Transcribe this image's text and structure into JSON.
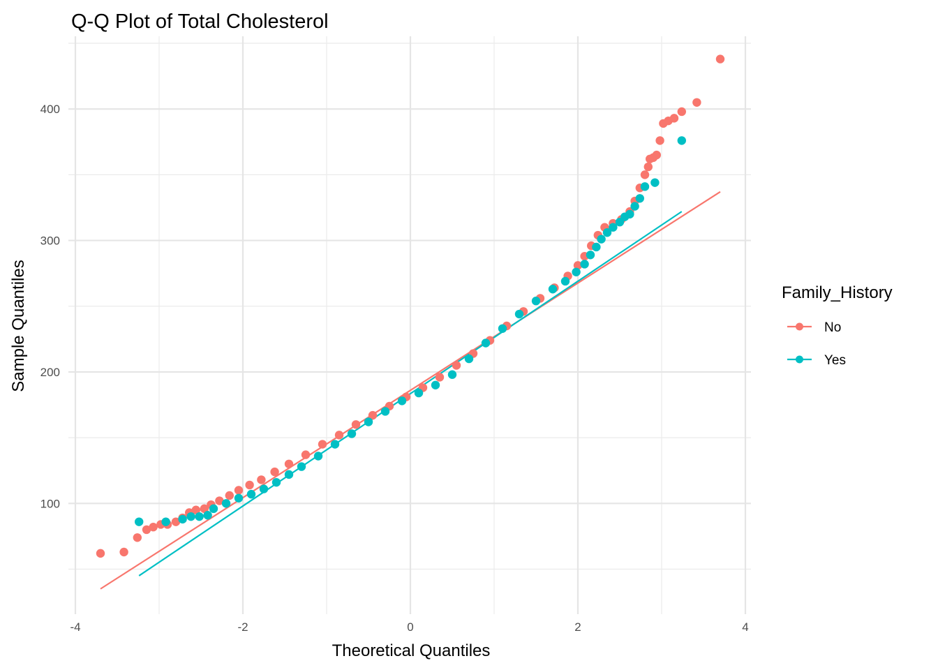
{
  "chart_data": {
    "type": "scatter",
    "title": "Q-Q Plot of Total Cholesterol",
    "xlabel": "Theoretical Quantiles",
    "ylabel": "Sample Quantiles",
    "xlim": [
      -4.0,
      4.0
    ],
    "ylim": [
      20,
      450
    ],
    "x_ticks": [
      -4,
      -2,
      0,
      2,
      4
    ],
    "x_tick_labels": [
      "-4",
      "-2",
      "0",
      "2",
      "4"
    ],
    "y_ticks": [
      100,
      200,
      300,
      400
    ],
    "y_tick_labels": [
      "100",
      "200",
      "300",
      "400"
    ],
    "grid": true,
    "legend": {
      "title": "Family_History",
      "position": "right",
      "entries": [
        "No",
        "Yes"
      ]
    },
    "series": [
      {
        "name": "No",
        "color": "#f8766d",
        "line": [
          [
            -3.7,
            35
          ],
          [
            3.7,
            337
          ]
        ],
        "points": [
          [
            -3.7,
            62
          ],
          [
            -3.42,
            63
          ],
          [
            -3.26,
            74
          ],
          [
            -3.15,
            80
          ],
          [
            -3.07,
            82
          ],
          [
            -2.98,
            84
          ],
          [
            -2.9,
            84
          ],
          [
            -2.8,
            86
          ],
          [
            -2.72,
            89
          ],
          [
            -2.64,
            93
          ],
          [
            -2.56,
            95
          ],
          [
            -2.46,
            96
          ],
          [
            -2.38,
            99
          ],
          [
            -2.28,
            102
          ],
          [
            -2.16,
            106
          ],
          [
            -2.05,
            110
          ],
          [
            -1.92,
            114
          ],
          [
            -1.78,
            118
          ],
          [
            -1.62,
            124
          ],
          [
            -1.45,
            130
          ],
          [
            -1.25,
            137
          ],
          [
            -1.05,
            145
          ],
          [
            -0.85,
            152
          ],
          [
            -0.65,
            160
          ],
          [
            -0.45,
            167
          ],
          [
            -0.25,
            174
          ],
          [
            -0.05,
            181
          ],
          [
            0.15,
            188
          ],
          [
            0.35,
            196
          ],
          [
            0.55,
            205
          ],
          [
            0.75,
            214
          ],
          [
            0.95,
            224
          ],
          [
            1.15,
            235
          ],
          [
            1.35,
            246
          ],
          [
            1.55,
            256
          ],
          [
            1.72,
            264
          ],
          [
            1.88,
            273
          ],
          [
            2.0,
            281
          ],
          [
            2.08,
            288
          ],
          [
            2.16,
            296
          ],
          [
            2.24,
            304
          ],
          [
            2.32,
            310
          ],
          [
            2.42,
            313
          ],
          [
            2.52,
            316
          ],
          [
            2.62,
            322
          ],
          [
            2.68,
            330
          ],
          [
            2.74,
            340
          ],
          [
            2.8,
            350
          ],
          [
            2.84,
            356
          ],
          [
            2.86,
            362
          ],
          [
            2.9,
            363
          ],
          [
            2.94,
            365
          ],
          [
            2.98,
            376
          ],
          [
            3.02,
            389
          ],
          [
            3.08,
            391
          ],
          [
            3.15,
            393
          ],
          [
            3.24,
            398
          ],
          [
            3.42,
            405
          ],
          [
            3.7,
            438
          ]
        ]
      },
      {
        "name": "Yes",
        "color": "#00bfc4",
        "line": [
          [
            -3.24,
            45
          ],
          [
            3.24,
            322
          ]
        ],
        "points": [
          [
            -3.24,
            86
          ],
          [
            -2.92,
            86
          ],
          [
            -2.72,
            88
          ],
          [
            -2.62,
            90
          ],
          [
            -2.52,
            90
          ],
          [
            -2.42,
            91
          ],
          [
            -2.35,
            96
          ],
          [
            -2.2,
            100
          ],
          [
            -2.05,
            104
          ],
          [
            -1.9,
            107
          ],
          [
            -1.75,
            111
          ],
          [
            -1.6,
            116
          ],
          [
            -1.45,
            122
          ],
          [
            -1.3,
            128
          ],
          [
            -1.1,
            136
          ],
          [
            -0.9,
            145
          ],
          [
            -0.7,
            153
          ],
          [
            -0.5,
            162
          ],
          [
            -0.3,
            170
          ],
          [
            -0.1,
            178
          ],
          [
            0.1,
            184
          ],
          [
            0.3,
            190
          ],
          [
            0.5,
            198
          ],
          [
            0.7,
            210
          ],
          [
            0.9,
            222
          ],
          [
            1.1,
            233
          ],
          [
            1.3,
            244
          ],
          [
            1.5,
            254
          ],
          [
            1.7,
            263
          ],
          [
            1.85,
            269
          ],
          [
            1.98,
            276
          ],
          [
            2.08,
            282
          ],
          [
            2.15,
            289
          ],
          [
            2.22,
            295
          ],
          [
            2.28,
            301
          ],
          [
            2.35,
            306
          ],
          [
            2.42,
            310
          ],
          [
            2.5,
            314
          ],
          [
            2.56,
            318
          ],
          [
            2.62,
            320
          ],
          [
            2.68,
            326
          ],
          [
            2.74,
            332
          ],
          [
            2.8,
            341
          ],
          [
            2.92,
            344
          ],
          [
            3.24,
            376
          ]
        ]
      }
    ]
  }
}
